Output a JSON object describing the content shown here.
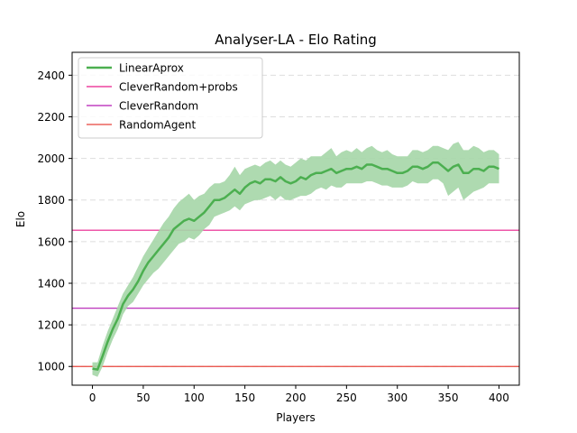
{
  "chart_data": {
    "type": "line",
    "title": "Analyser-LA - Elo Rating",
    "xlabel": "Players",
    "ylabel": "Elo",
    "xlim": [
      -20,
      420
    ],
    "ylim": [
      910,
      2510
    ],
    "xticks": [
      0,
      50,
      100,
      150,
      200,
      250,
      300,
      350,
      400
    ],
    "yticks": [
      1000,
      1200,
      1400,
      1600,
      1800,
      2000,
      2200,
      2400
    ],
    "grid": "horizontal dashed",
    "legend_position": "top-left",
    "series": [
      {
        "name": "LinearAprox",
        "color": "#4caf50",
        "band_color": "#a5d6a7",
        "x": [
          0,
          5,
          10,
          15,
          20,
          25,
          30,
          35,
          40,
          45,
          50,
          55,
          60,
          65,
          70,
          75,
          80,
          85,
          90,
          95,
          100,
          105,
          110,
          115,
          120,
          125,
          130,
          135,
          140,
          145,
          150,
          155,
          160,
          165,
          170,
          175,
          180,
          185,
          190,
          195,
          200,
          205,
          210,
          215,
          220,
          225,
          230,
          235,
          240,
          245,
          250,
          255,
          260,
          265,
          270,
          275,
          280,
          285,
          290,
          295,
          300,
          305,
          310,
          315,
          320,
          325,
          330,
          335,
          340,
          345,
          350,
          355,
          360,
          365,
          370,
          375,
          380,
          385,
          390,
          395,
          400
        ],
        "y": [
          990,
          985,
          1050,
          1120,
          1180,
          1230,
          1300,
          1340,
          1370,
          1410,
          1460,
          1500,
          1530,
          1560,
          1590,
          1620,
          1660,
          1680,
          1700,
          1710,
          1700,
          1720,
          1740,
          1770,
          1800,
          1800,
          1810,
          1830,
          1850,
          1830,
          1860,
          1880,
          1890,
          1880,
          1900,
          1900,
          1890,
          1910,
          1890,
          1880,
          1890,
          1910,
          1900,
          1920,
          1930,
          1930,
          1940,
          1950,
          1930,
          1940,
          1950,
          1950,
          1960,
          1950,
          1970,
          1970,
          1960,
          1950,
          1950,
          1940,
          1930,
          1930,
          1940,
          1960,
          1960,
          1950,
          1960,
          1980,
          1980,
          1960,
          1940,
          1960,
          1970,
          1930,
          1930,
          1950,
          1950,
          1940,
          1960,
          1960,
          1950
        ],
        "lower": [
          960,
          950,
          1000,
          1070,
          1130,
          1180,
          1250,
          1290,
          1310,
          1350,
          1390,
          1420,
          1450,
          1470,
          1500,
          1530,
          1560,
          1590,
          1600,
          1620,
          1610,
          1630,
          1660,
          1680,
          1720,
          1730,
          1740,
          1750,
          1770,
          1750,
          1780,
          1790,
          1800,
          1800,
          1810,
          1820,
          1800,
          1820,
          1800,
          1800,
          1810,
          1820,
          1820,
          1830,
          1850,
          1860,
          1850,
          1870,
          1860,
          1860,
          1880,
          1880,
          1880,
          1880,
          1890,
          1890,
          1880,
          1870,
          1870,
          1860,
          1860,
          1860,
          1870,
          1890,
          1880,
          1880,
          1880,
          1900,
          1900,
          1880,
          1820,
          1840,
          1860,
          1800,
          1820,
          1840,
          1850,
          1860,
          1880,
          1880,
          1880
        ],
        "upper": [
          1020,
          1020,
          1100,
          1170,
          1230,
          1290,
          1350,
          1390,
          1430,
          1480,
          1530,
          1570,
          1610,
          1650,
          1690,
          1720,
          1760,
          1790,
          1810,
          1830,
          1800,
          1820,
          1830,
          1860,
          1880,
          1880,
          1890,
          1920,
          1960,
          1920,
          1950,
          1960,
          1970,
          1960,
          1980,
          1990,
          1970,
          1990,
          1970,
          1960,
          1980,
          2000,
          1990,
          2010,
          2010,
          2010,
          2030,
          2050,
          2010,
          2030,
          2040,
          2030,
          2050,
          2030,
          2050,
          2060,
          2040,
          2030,
          2040,
          2020,
          2010,
          2010,
          2010,
          2040,
          2040,
          2030,
          2040,
          2060,
          2060,
          2050,
          2040,
          2070,
          2080,
          2040,
          2040,
          2060,
          2050,
          2030,
          2040,
          2040,
          2020
        ]
      },
      {
        "name": "CleverRandom+probs",
        "color": "#e91e8c",
        "type": "hline",
        "y": 1655
      },
      {
        "name": "CleverRandom",
        "color": "#b31ab3",
        "type": "hline",
        "y": 1280
      },
      {
        "name": "RandomAgent",
        "color": "#e8453c",
        "type": "hline",
        "y": 1000
      }
    ]
  }
}
